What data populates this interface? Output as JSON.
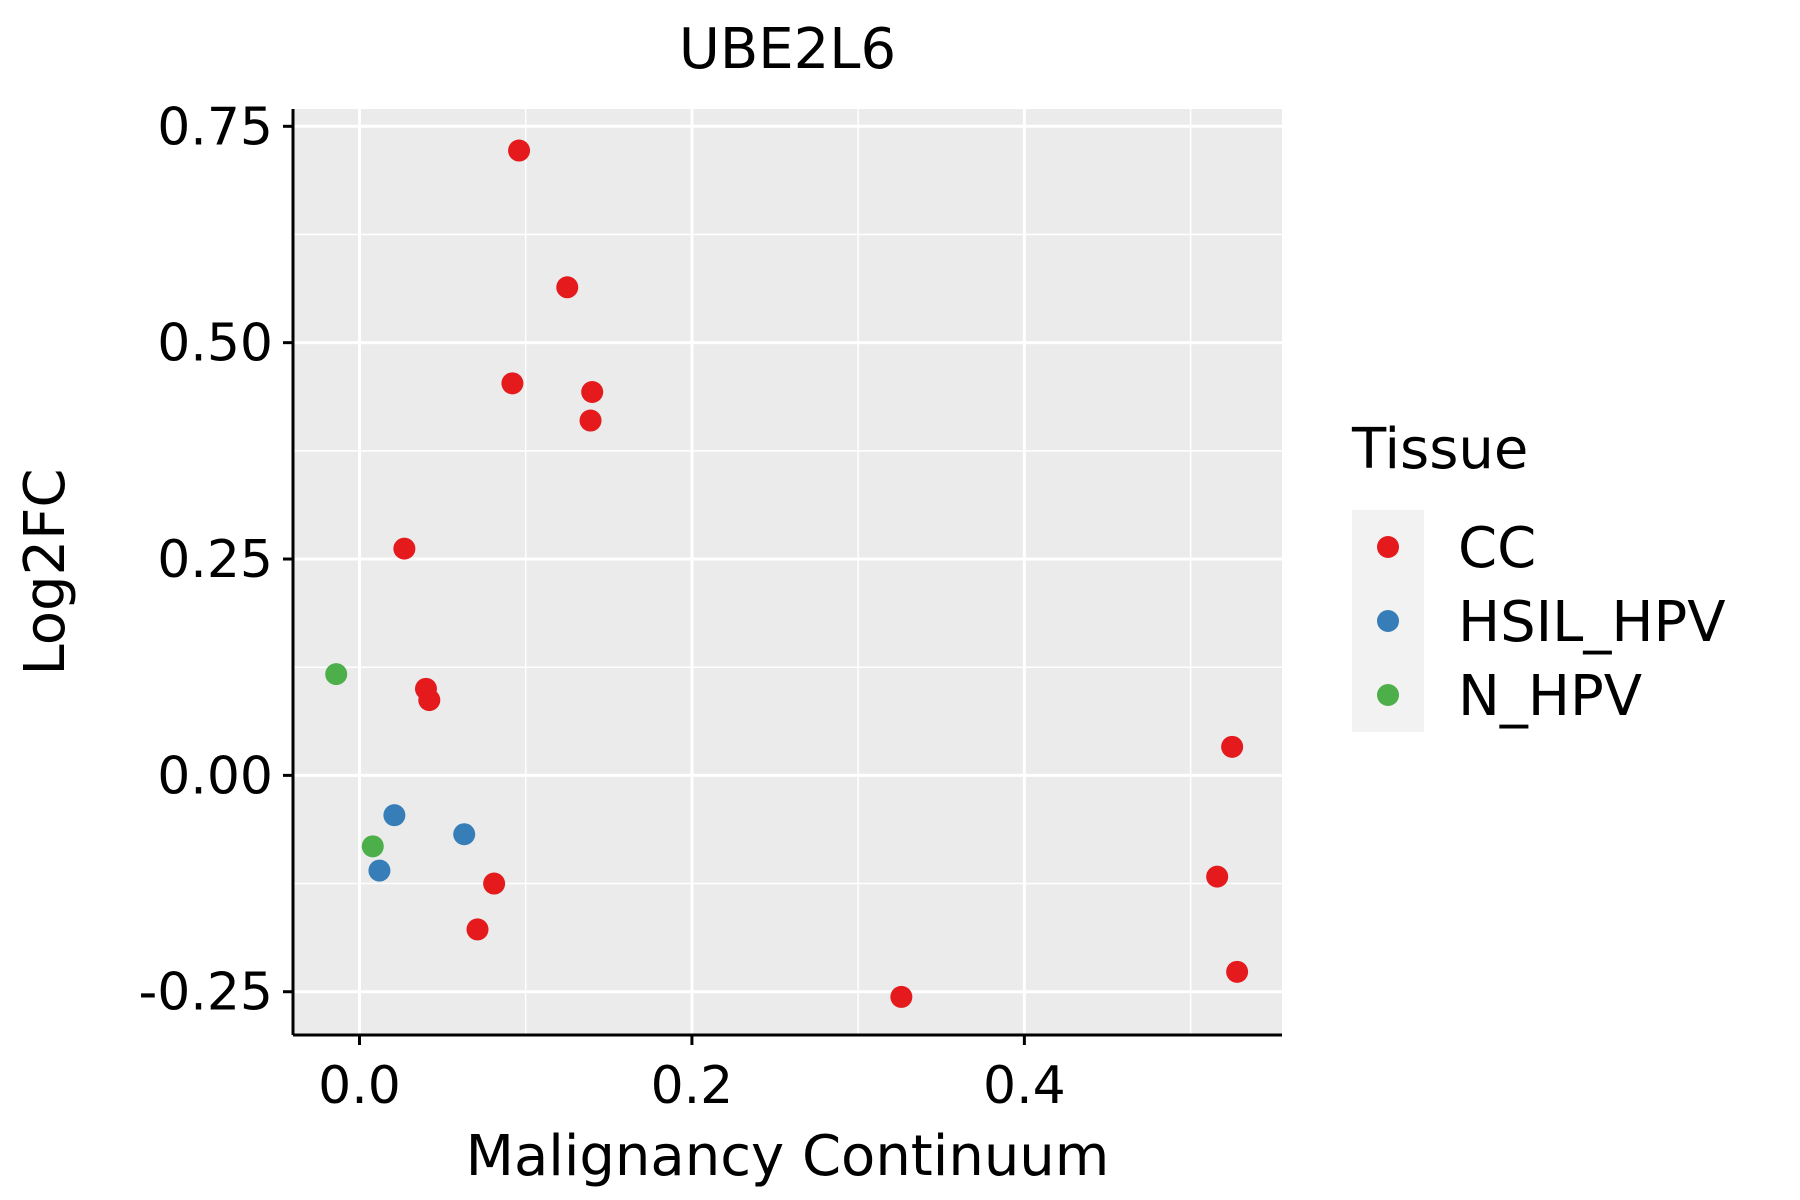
{
  "chart_data": {
    "type": "scatter",
    "title": "UBE2L6",
    "xlabel": "Malignancy Continuum",
    "ylabel": "Log2FC",
    "xlim": [
      -0.04,
      0.555
    ],
    "ylim": [
      -0.3,
      0.77
    ],
    "xticks": [
      0.0,
      0.2,
      0.4
    ],
    "xtick_labels": [
      "0.0",
      "0.2",
      "0.4"
    ],
    "yticks": [
      -0.25,
      0.0,
      0.25,
      0.5,
      0.75
    ],
    "ytick_labels": [
      "-0.25",
      "0.00",
      "0.25",
      "0.50",
      "0.75"
    ],
    "grid": true,
    "legend": {
      "title": "Tissue",
      "position": "right"
    },
    "series": [
      {
        "name": "CC",
        "color": "#E41A1C",
        "points": [
          {
            "x": 0.096,
            "y": 0.722
          },
          {
            "x": 0.125,
            "y": 0.564
          },
          {
            "x": 0.092,
            "y": 0.453
          },
          {
            "x": 0.14,
            "y": 0.443
          },
          {
            "x": 0.139,
            "y": 0.41
          },
          {
            "x": 0.027,
            "y": 0.262
          },
          {
            "x": 0.04,
            "y": 0.1
          },
          {
            "x": 0.042,
            "y": 0.087
          },
          {
            "x": 0.081,
            "y": -0.125
          },
          {
            "x": 0.071,
            "y": -0.178
          },
          {
            "x": 0.326,
            "y": -0.256
          },
          {
            "x": 0.525,
            "y": 0.033
          },
          {
            "x": 0.516,
            "y": -0.117
          },
          {
            "x": 0.528,
            "y": -0.227
          }
        ]
      },
      {
        "name": "HSIL_HPV",
        "color": "#377EB8",
        "points": [
          {
            "x": 0.021,
            "y": -0.046
          },
          {
            "x": 0.063,
            "y": -0.068
          },
          {
            "x": 0.012,
            "y": -0.11
          }
        ]
      },
      {
        "name": "N_HPV",
        "color": "#4DAF4A",
        "points": [
          {
            "x": -0.014,
            "y": 0.117
          },
          {
            "x": 0.008,
            "y": -0.082
          }
        ]
      }
    ]
  }
}
